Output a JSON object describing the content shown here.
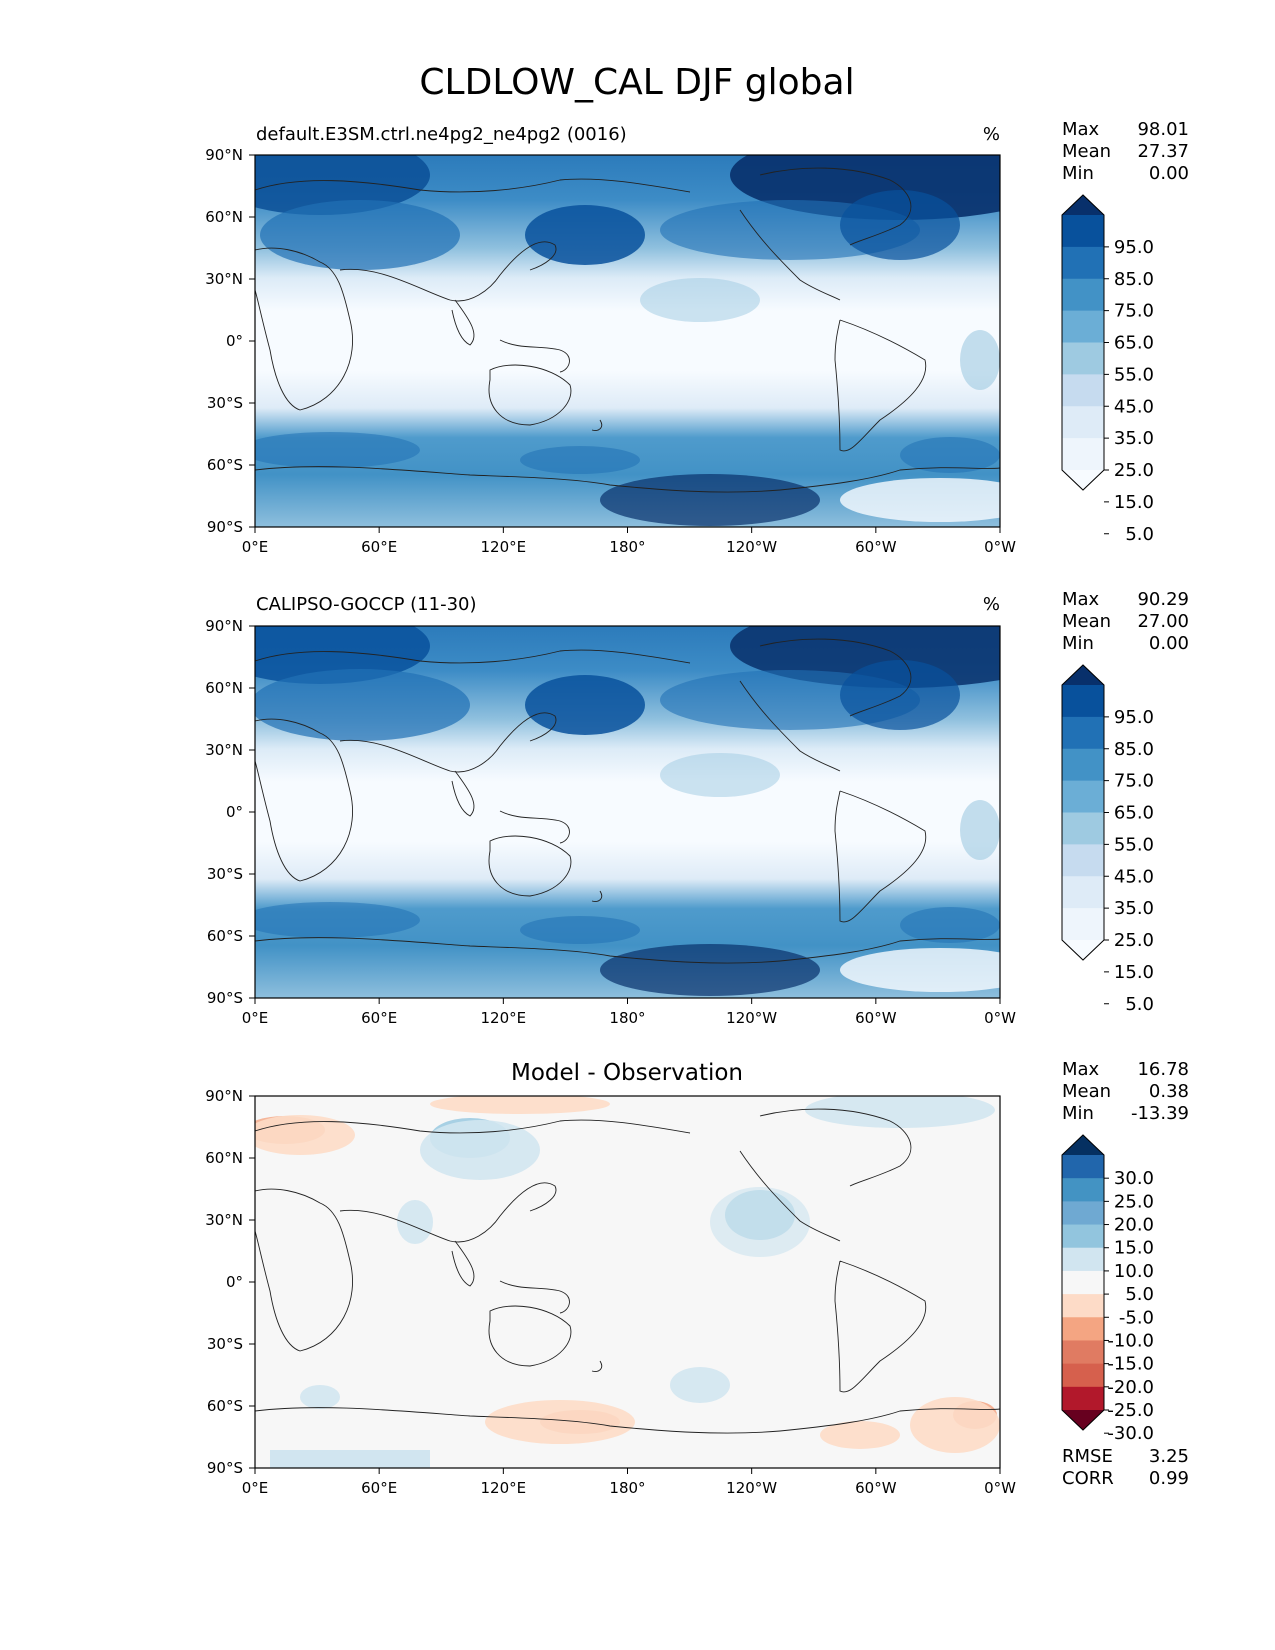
{
  "title": "CLDLOW_CAL DJF global",
  "x_ticks": [
    "0°E",
    "60°E",
    "120°E",
    "180°",
    "120°W",
    "60°W",
    "0°W"
  ],
  "y_ticks": [
    "90°N",
    "60°N",
    "30°N",
    "0°",
    "30°S",
    "60°S",
    "90°S"
  ],
  "panels": [
    {
      "id": "model",
      "title_left": "default.E3SM.ctrl.ne4pg2_ne4pg2 (0016)",
      "title_right": "%",
      "stats": [
        {
          "label": "Max",
          "value": "98.01"
        },
        {
          "label": "Mean",
          "value": "27.37"
        },
        {
          "label": "Min",
          "value": "0.00"
        }
      ]
    },
    {
      "id": "obs",
      "title_left": "CALIPSO-GOCCP (11-30)",
      "title_right": "%",
      "stats": [
        {
          "label": "Max",
          "value": "90.29"
        },
        {
          "label": "Mean",
          "value": "27.00"
        },
        {
          "label": "Min",
          "value": "0.00"
        }
      ]
    },
    {
      "id": "diff",
      "title_center": "Model - Observation",
      "stats": [
        {
          "label": "Max",
          "value": "16.78"
        },
        {
          "label": "Mean",
          "value": "0.38"
        },
        {
          "label": "Min",
          "value": "-13.39"
        }
      ],
      "extra_stats": [
        {
          "label": "RMSE",
          "value": "3.25"
        },
        {
          "label": "CORR",
          "value": "0.99"
        }
      ]
    }
  ],
  "colorbar_abs": {
    "labels": [
      "95.0",
      "85.0",
      "75.0",
      "65.0",
      "55.0",
      "45.0",
      "35.0",
      "25.0",
      "15.0",
      "5.0"
    ],
    "colors_top_to_bottom": [
      "#08306b",
      "#08519c",
      "#2171b5",
      "#4292c6",
      "#6baed6",
      "#9ecae1",
      "#c6dbef",
      "#deebf7",
      "#eef5fc",
      "#f7fbff"
    ]
  },
  "colorbar_diff": {
    "labels": [
      "30.0",
      "25.0",
      "20.0",
      "15.0",
      "10.0",
      "5.0",
      "-5.0",
      "-10.0",
      "-15.0",
      "-20.0",
      "-25.0",
      "-30.0"
    ],
    "colors_top_to_bottom": [
      "#053061",
      "#2166ac",
      "#4393c3",
      "#6fa9d2",
      "#92c5de",
      "#d1e5f0",
      "#f7f7f7",
      "#fddbc7",
      "#f4a582",
      "#e07b62",
      "#d6604d",
      "#b2182b",
      "#67001f"
    ]
  },
  "chart_data": [
    {
      "type": "heatmap",
      "title": "default.E3SM.ctrl.ne4pg2_ne4pg2 (0016)",
      "units": "%",
      "xlabel": "",
      "ylabel": "",
      "xlim": [
        0,
        360
      ],
      "ylim": [
        -90,
        90
      ],
      "x_ticks": [
        0,
        60,
        120,
        180,
        240,
        300,
        360
      ],
      "y_ticks": [
        90,
        60,
        30,
        0,
        -30,
        -60,
        -90
      ],
      "color_levels": [
        5,
        15,
        25,
        35,
        45,
        55,
        65,
        75,
        85,
        95
      ],
      "max": 98.01,
      "mean": 27.37,
      "min": 0.0
    },
    {
      "type": "heatmap",
      "title": "CALIPSO-GOCCP (11-30)",
      "units": "%",
      "xlim": [
        0,
        360
      ],
      "ylim": [
        -90,
        90
      ],
      "color_levels": [
        5,
        15,
        25,
        35,
        45,
        55,
        65,
        75,
        85,
        95
      ],
      "max": 90.29,
      "mean": 27.0,
      "min": 0.0
    },
    {
      "type": "heatmap",
      "title": "Model - Observation",
      "xlim": [
        0,
        360
      ],
      "ylim": [
        -90,
        90
      ],
      "color_levels": [
        -30,
        -25,
        -20,
        -15,
        -10,
        -5,
        5,
        10,
        15,
        20,
        25,
        30
      ],
      "max": 16.78,
      "mean": 0.38,
      "min": -13.39,
      "rmse": 3.25,
      "corr": 0.99
    }
  ]
}
